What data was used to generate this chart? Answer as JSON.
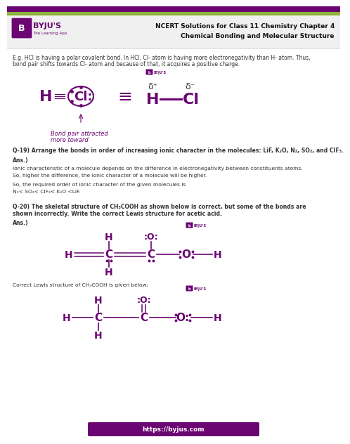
{
  "title_line1": "NCERT Solutions for Class 11 Chemistry Chapter 4",
  "title_line2": "Chemical Bonding and Molecular Structure",
  "header_bg_top": "#6a0572",
  "header_bg_green": "#8db33a",
  "header_text_color": "#1a1a1a",
  "byju_purple": "#6a0572",
  "body_bg": "#ffffff",
  "text_color": "#333333",
  "purple_color": "#6a0572",
  "intro_text1": "E.g. HCl is having a polar covalent bond. In HCl, Cl- atom is having more electronegativity than H- atom. Thus,",
  "intro_text2": "bond pair shifts towards Cl- atom and because of that, it acquires a positive charge.",
  "q19_bold": "Q-19) Arrange the bonds in order of increasing ionic character in the molecules: LiF, K₂O, N₂, SO₂, and ClF₃.",
  "ans19_label": "Ans.)",
  "ans19_text1": "Ionic characteristic of a molecule depends on the difference in electronegativity between constituents atoms.",
  "ans19_text2": "So, higher the difference, the ionic character of a molecule will be higher.",
  "ans19_text3": "So, the required order of ionic character of the given molecules is",
  "ans19_order": "N₂< SO₂< ClF₃< K₂O <LiF.",
  "q20_bold1": "Q-20) The skeletal structure of CH₃COOH as shown below is correct, but some of the bonds are",
  "q20_bold2": "shown incorrectly. Write the correct Lewis structure for acetic acid.",
  "ans20_label": "Ans.)",
  "correct_lewis": "Correct Lewis structure of CH₃COOH is given below:",
  "footer_url": "https://byjus.com",
  "footer_bg": "#6a0572",
  "footer_text_color": "#ffffff",
  "bond_pair_text1": "Bond pair attracted",
  "bond_pair_text2": "more toward"
}
